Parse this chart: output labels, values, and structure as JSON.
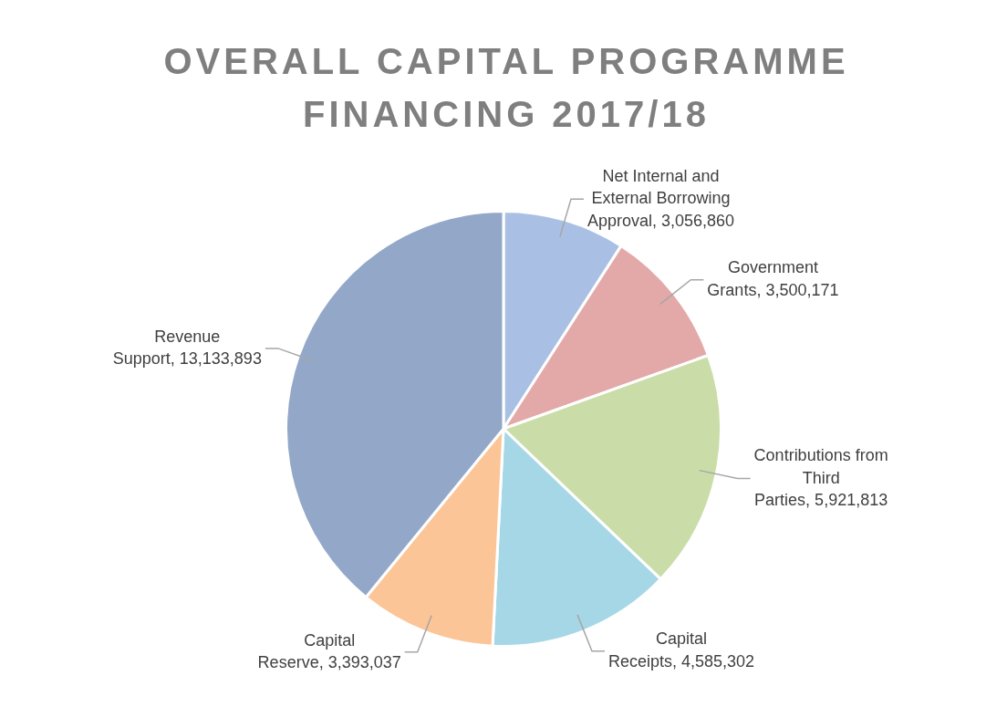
{
  "chart_data": {
    "type": "pie",
    "title": "OVERALL CAPITAL PROGRAMME FINANCING 2017/18",
    "categories": [
      "Net Internal and External Borrowing Approval",
      "Government Grants",
      "Contributions from Third Parties",
      "Capital Receipts",
      "Capital Reserve",
      "Revenue Support"
    ],
    "values": [
      3056860,
      3500171,
      5921813,
      4585302,
      3393037,
      13133893
    ],
    "value_labels": [
      "3,056,860",
      "3,500,171",
      "5,921,813",
      "4,585,302",
      "3,393,037",
      "13,133,893"
    ],
    "colors": [
      "#a9c0e4",
      "#e3a9a9",
      "#cadda8",
      "#a6d7e6",
      "#fbc597",
      "#93a8c8"
    ],
    "legend": false
  }
}
